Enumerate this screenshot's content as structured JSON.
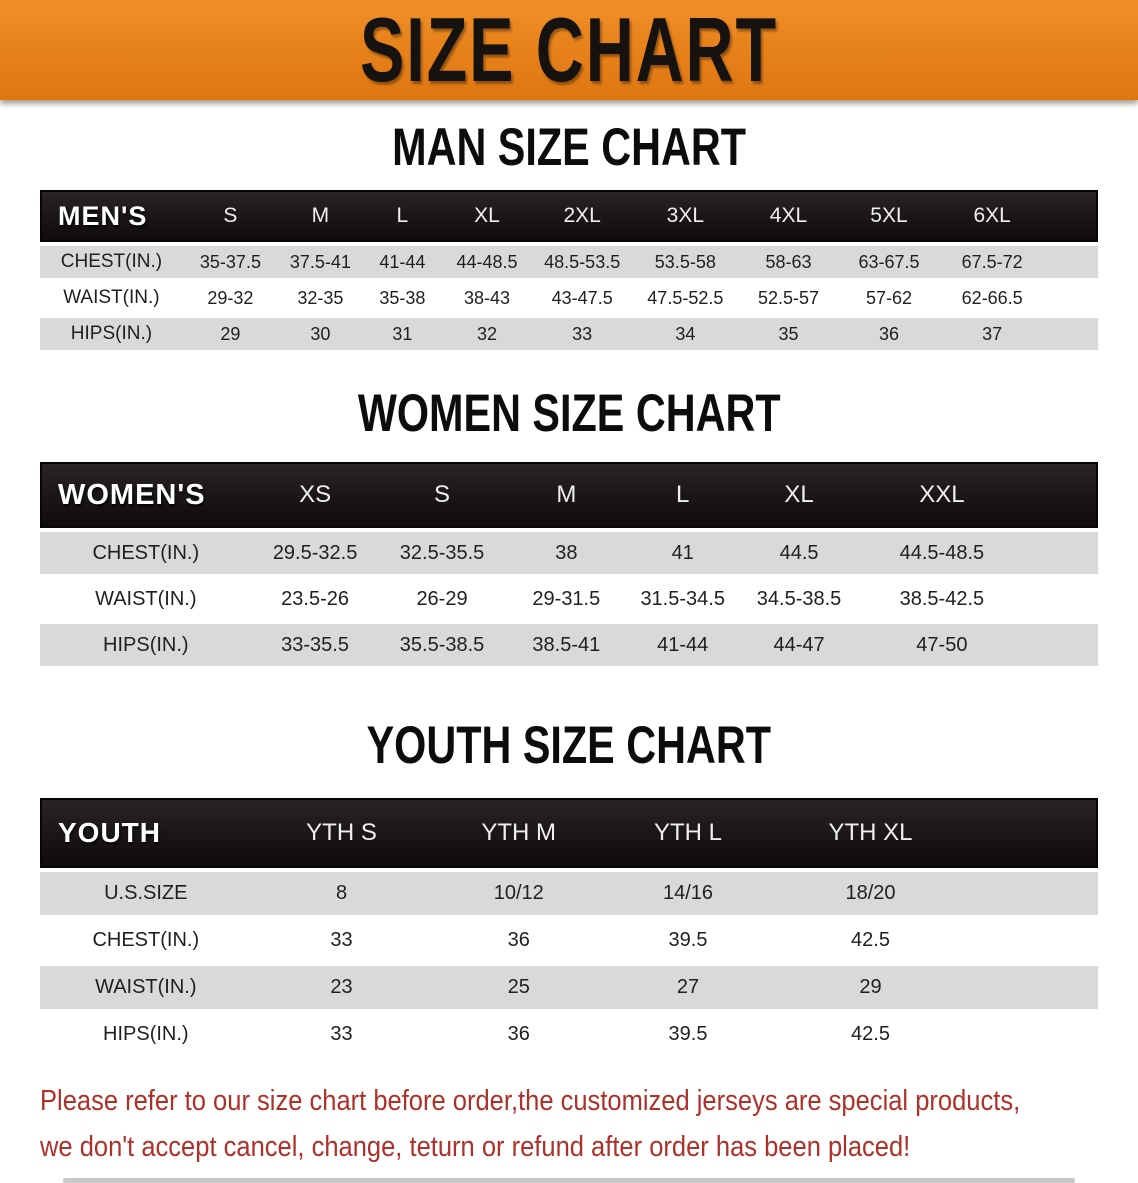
{
  "banner": {
    "title": "SIZE CHART"
  },
  "colors": {
    "banner_orange": "#E8821B",
    "banner_orange_light": "#F0902A",
    "banner_orange_dark": "#DE7712",
    "row_gray": "#D9D9D9",
    "disclaimer_red": "#AE3129"
  },
  "sections": [
    {
      "heading": "MAN SIZE CHART",
      "corner": "MEN'S",
      "columns": [
        "S",
        "M",
        "L",
        "XL",
        "2XL",
        "3XL",
        "4XL",
        "5XL",
        "6XL"
      ],
      "rows": [
        {
          "label": "CHEST(IN.)",
          "values": [
            "35-37.5",
            "37.5-41",
            "41-44",
            "44-48.5",
            "48.5-53.5",
            "53.5-58",
            "58-63",
            "63-67.5",
            "67.5-72"
          ]
        },
        {
          "label": "WAIST(IN.)",
          "values": [
            "29-32",
            "32-35",
            "35-38",
            "38-43",
            "43-47.5",
            "47.5-52.5",
            "52.5-57",
            "57-62",
            "62-66.5"
          ]
        },
        {
          "label": "HIPS(IN.)",
          "values": [
            "29",
            "30",
            "31",
            "32",
            "33",
            "34",
            "35",
            "36",
            "37"
          ]
        }
      ]
    },
    {
      "heading": "WOMEN SIZE CHART",
      "corner": "WOMEN'S",
      "columns": [
        "XS",
        "S",
        "M",
        "L",
        "XL",
        "XXL"
      ],
      "rows": [
        {
          "label": "CHEST(IN.)",
          "values": [
            "29.5-32.5",
            "32.5-35.5",
            "38",
            "41",
            "44.5",
            "44.5-48.5"
          ]
        },
        {
          "label": "WAIST(IN.)",
          "values": [
            "23.5-26",
            "26-29",
            "29-31.5",
            "31.5-34.5",
            "34.5-38.5",
            "38.5-42.5"
          ]
        },
        {
          "label": "HIPS(IN.)",
          "values": [
            "33-35.5",
            "35.5-38.5",
            "38.5-41",
            "41-44",
            "44-47",
            "47-50"
          ]
        }
      ]
    },
    {
      "heading": "YOUTH SIZE CHART",
      "corner": "YOUTH",
      "columns": [
        "YTH S",
        "YTH M",
        "YTH L",
        "YTH XL"
      ],
      "rows": [
        {
          "label": "U.S.SIZE",
          "values": [
            "8",
            "10/12",
            "14/16",
            "18/20"
          ]
        },
        {
          "label": "CHEST(IN.)",
          "values": [
            "33",
            "36",
            "39.5",
            "42.5"
          ]
        },
        {
          "label": "WAIST(IN.)",
          "values": [
            "23",
            "25",
            "27",
            "29"
          ]
        },
        {
          "label": "HIPS(IN.)",
          "values": [
            "33",
            "36",
            "39.5",
            "42.5"
          ]
        }
      ]
    }
  ],
  "disclaimer": {
    "line1": "Please refer to our size chart before order,the customized jerseys are special products,",
    "line2": "we don't accept cancel, change, teturn or refund after order has been placed!"
  }
}
